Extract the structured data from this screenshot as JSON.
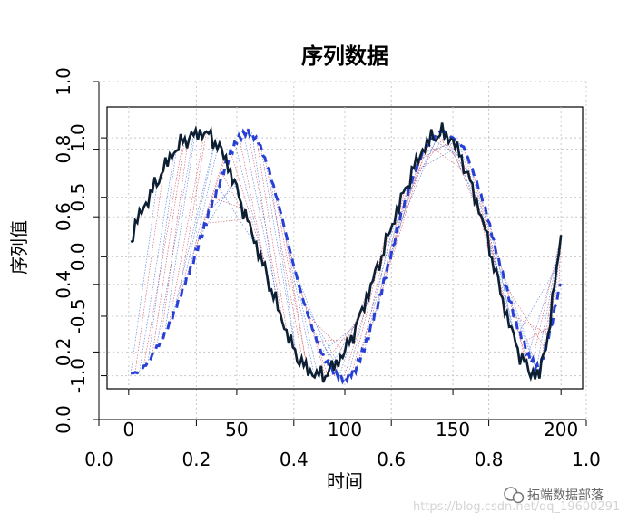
{
  "chart_data": {
    "type": "line",
    "title": "序列数据",
    "xlabel": "时间",
    "ylabel": "序列值",
    "x_ticks": [
      "0",
      "50",
      "100",
      "150",
      "200"
    ],
    "y_ticks": [
      "-1.0",
      "-0.5",
      "0.0",
      "0.5",
      "1.0"
    ],
    "outer_x_ticks": [
      "0.0",
      "0.2",
      "0.4",
      "0.6",
      "0.8",
      "1.0"
    ],
    "outer_y_ticks": [
      "0.0",
      "0.2",
      "0.4",
      "0.6",
      "0.8",
      "1.0"
    ],
    "xlim": [
      -10,
      210
    ],
    "ylim": [
      -1.11,
      1.26
    ],
    "grid": true,
    "colors": {
      "series": "#0d1f33",
      "reference": "#2640d6",
      "links_red": "#cc2233",
      "links_blue": "#2255cc"
    },
    "series": [
      {
        "x": [
          1,
          5,
          10,
          15,
          20,
          25,
          30,
          35,
          40,
          45,
          50,
          55,
          60,
          65,
          70,
          75,
          80,
          85,
          90,
          95,
          100,
          105,
          110,
          115,
          120,
          125,
          130,
          135,
          140,
          145,
          150,
          155,
          160,
          165,
          170,
          175,
          180,
          185,
          190,
          195,
          200
        ],
        "y": [
          0.15,
          0.35,
          0.52,
          0.7,
          0.86,
          0.97,
          1.02,
          1.05,
          0.97,
          0.82,
          0.56,
          0.3,
          0.05,
          -0.22,
          -0.48,
          -0.73,
          -0.9,
          -0.98,
          -1.0,
          -0.92,
          -0.8,
          -0.6,
          -0.35,
          -0.1,
          0.17,
          0.43,
          0.66,
          0.87,
          1.0,
          1.04,
          0.98,
          0.78,
          0.52,
          0.22,
          -0.15,
          -0.5,
          -0.78,
          -0.96,
          -1.0,
          -0.55,
          0.21
        ]
      },
      {
        "x": [
          1,
          5,
          10,
          15,
          20,
          25,
          30,
          35,
          40,
          45,
          50,
          55,
          60,
          65,
          70,
          75,
          80,
          85,
          90,
          95,
          100,
          105,
          110,
          115,
          120,
          125,
          130,
          135,
          140,
          145,
          150,
          155,
          160,
          165,
          170,
          175,
          180,
          185,
          190,
          195,
          200
        ],
        "y": [
          -0.98,
          -0.97,
          -0.86,
          -0.7,
          -0.52,
          -0.28,
          -0.02,
          0.25,
          0.52,
          0.78,
          0.98,
          1.06,
          0.97,
          0.72,
          0.4,
          0.02,
          -0.32,
          -0.6,
          -0.84,
          -0.98,
          -1.03,
          -0.94,
          -0.72,
          -0.42,
          -0.08,
          0.28,
          0.6,
          0.84,
          0.98,
          1.06,
          1.0,
          0.92,
          0.68,
          0.4,
          0.05,
          -0.28,
          -0.6,
          -0.84,
          -0.96,
          -0.62,
          -0.2
        ]
      }
    ]
  },
  "watermark": {
    "url": "https://blog.csdn.net/qq_19600291",
    "brand": "拓端数据部落"
  }
}
